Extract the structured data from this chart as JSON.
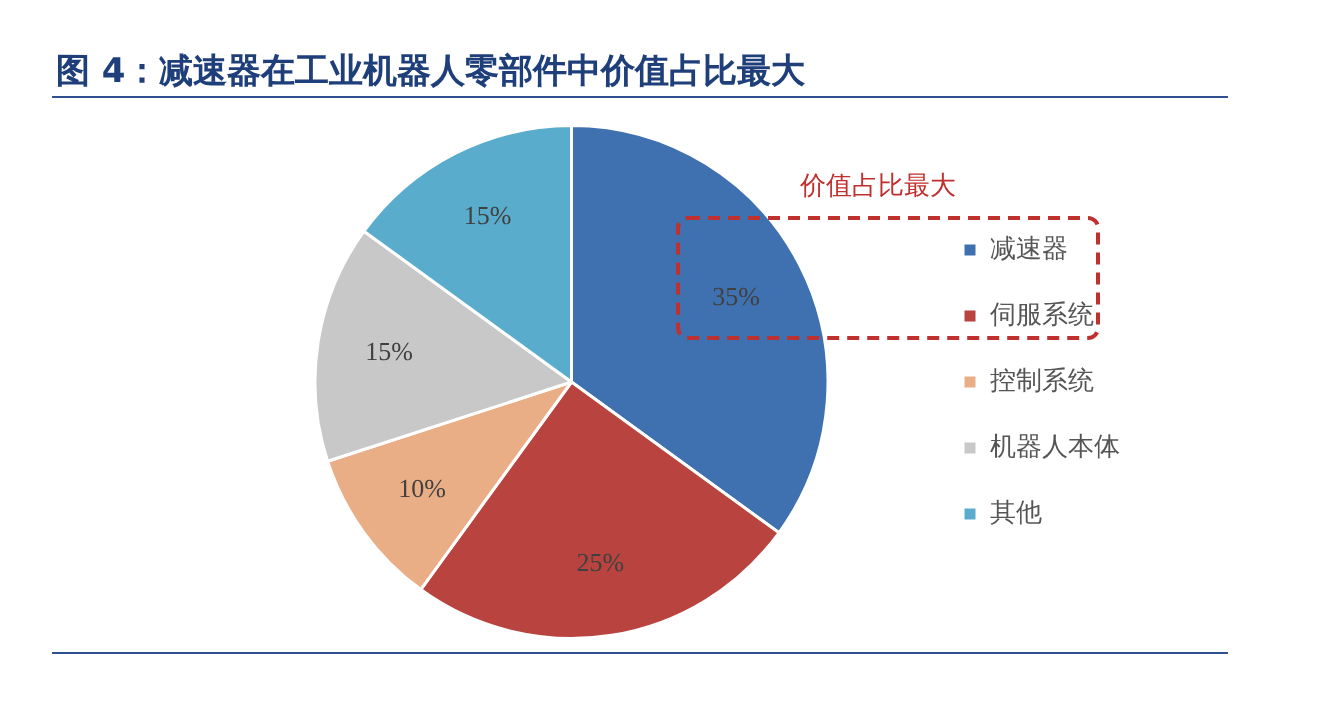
{
  "chart_data": {
    "type": "pie",
    "title": "图 4：减速器在工业机器人零部件中价值占比最大",
    "categories": [
      "减速器",
      "伺服系统",
      "控制系统",
      "机器人本体",
      "其他"
    ],
    "values": [
      35,
      25,
      10,
      15,
      15
    ],
    "colors": [
      "#3f70b0",
      "#b9443f",
      "#eaae86",
      "#c8c8c8",
      "#5aaccc"
    ],
    "value_labels": [
      "35%",
      "25%",
      "10%",
      "15%",
      "15%"
    ],
    "annotations": [
      "价值占比最大"
    ],
    "legend": "right"
  }
}
